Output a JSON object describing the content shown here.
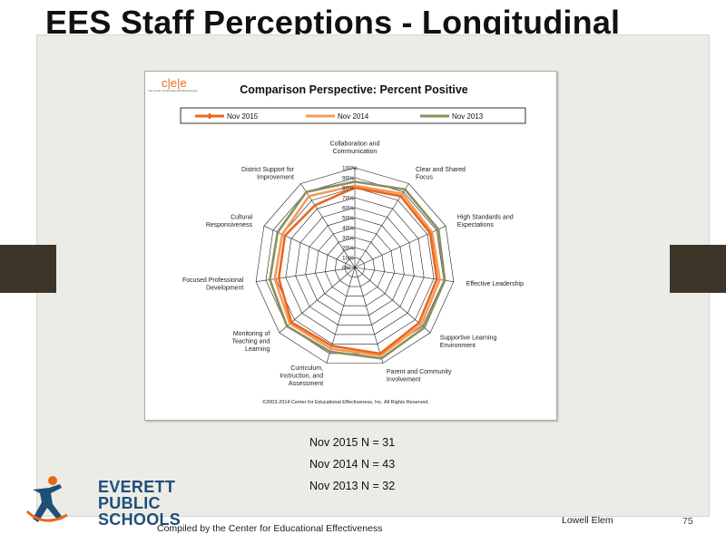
{
  "slide": {
    "title": "EES Staff Perceptions - Longitudinal",
    "footer": "Compiled  by the Center for Educational  Effectiveness",
    "school": "Lowell Elem",
    "page_number": "75",
    "logo_lines": [
      "EVERETT",
      "PUBLIC",
      "SCHOOLS"
    ],
    "n_counts": [
      "Nov 2015   N = 31",
      "Nov 2014   N = 43",
      "Nov 2013   N = 32"
    ]
  },
  "chart_header": {
    "logo_text": "c|e|e",
    "logo_caption": "The Center for Educational Effectiveness"
  },
  "chart_data": {
    "type": "radar",
    "title": "Comparison Perspective: Percent Positive",
    "copyright": "©2003-2014 Center for Educational Effectiveness, Inc. All Rights Reserved.",
    "categories": [
      "Collaboration and Communication",
      "Clear and Shared Focus",
      "High Standards and Expectations",
      "Effective Leadership",
      "Supportive Learning Environment",
      "Parent and Community Involvement",
      "Curriculum, Instruction, and Assessment",
      "Monitoring of Teaching and Learning",
      "Focused Professional Development",
      "Cultural Responsiveness",
      "District Support for Improvement"
    ],
    "tick_labels": [
      "0%",
      "10%",
      "20%",
      "30%",
      "40%",
      "50%",
      "60%",
      "70%",
      "80%",
      "90%",
      "100%"
    ],
    "range": [
      0,
      100
    ],
    "legend_position": "top",
    "series": [
      {
        "name": "Nov 2015",
        "color": "#e8681a",
        "values": [
          80,
          85,
          83,
          83,
          85,
          90,
          82,
          84,
          77,
          77,
          74
        ]
      },
      {
        "name": "Nov 2014",
        "color": "#f79a5a",
        "values": [
          82,
          88,
          85,
          86,
          88,
          92,
          85,
          86,
          81,
          80,
          85
        ]
      },
      {
        "name": "Nov 2013",
        "color": "#8b8f5e",
        "values": [
          86,
          93,
          92,
          91,
          92,
          95,
          88,
          90,
          86,
          85,
          90
        ]
      }
    ]
  }
}
